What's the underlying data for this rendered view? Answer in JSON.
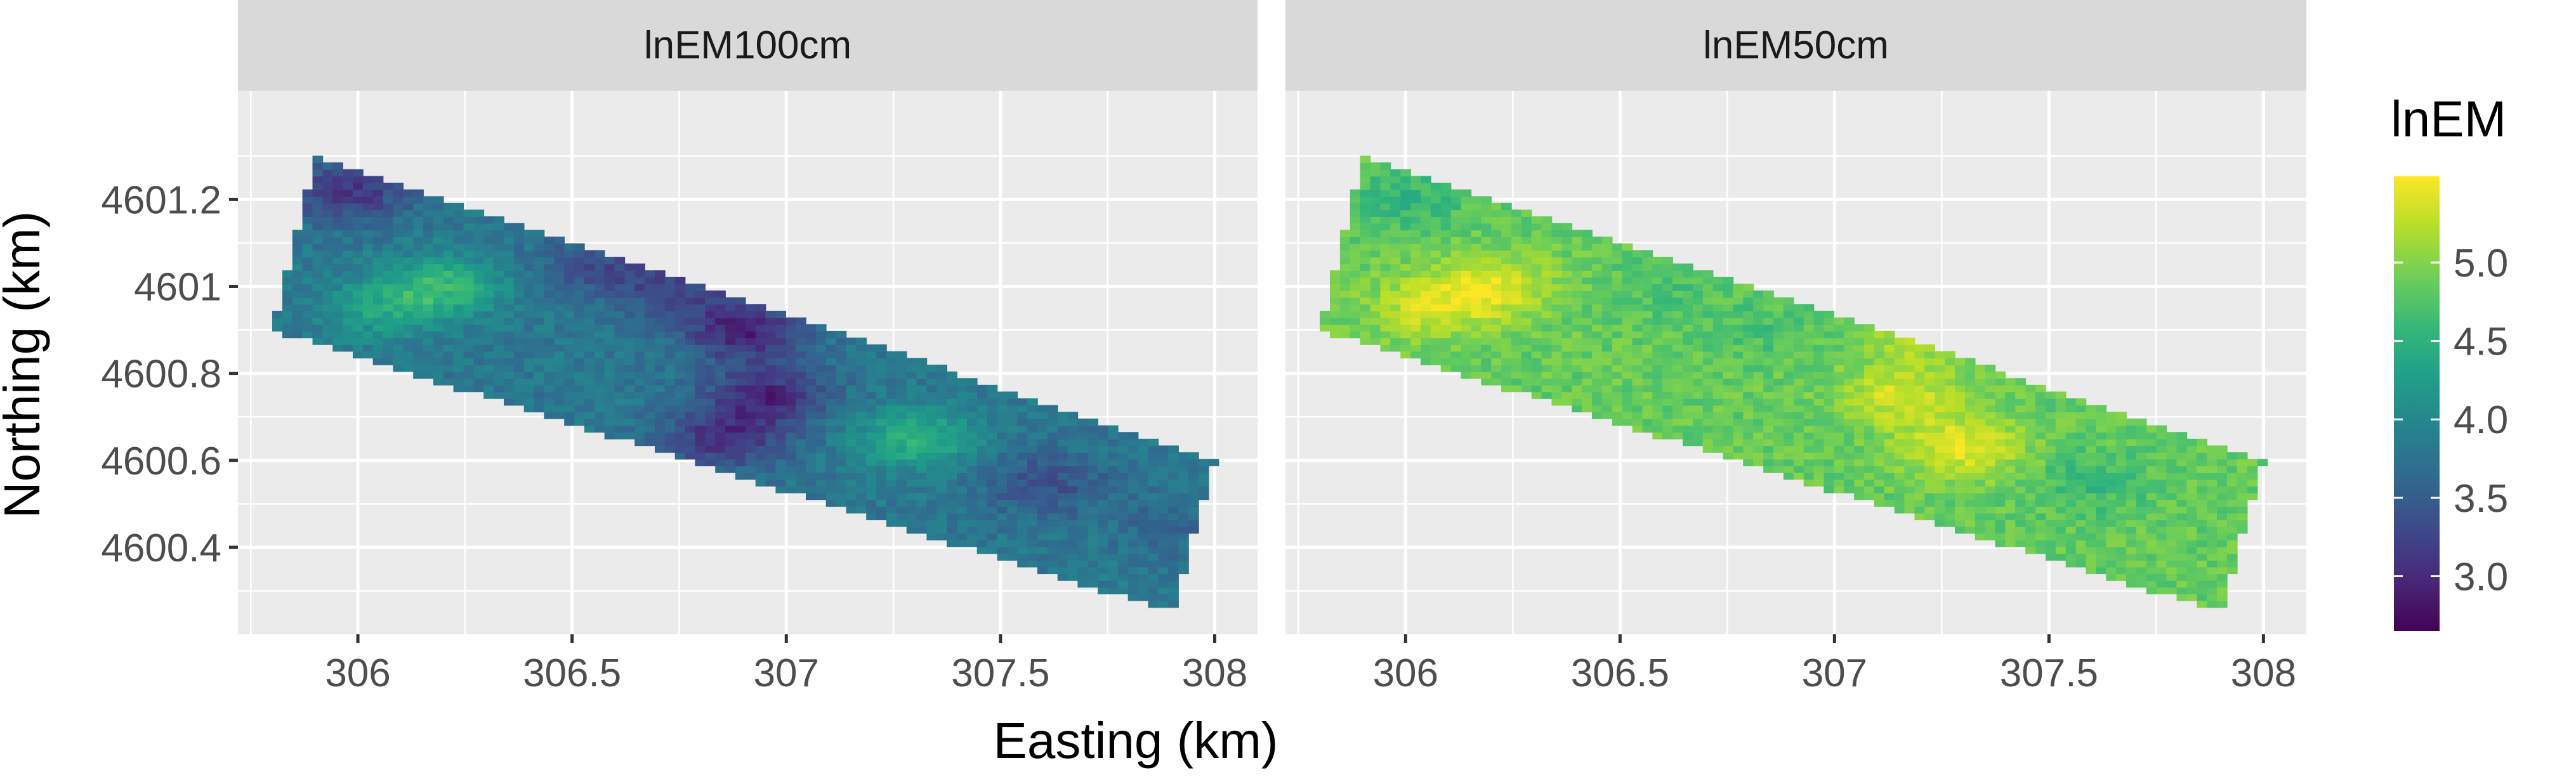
{
  "chart_data": {
    "type": "heatmap",
    "facets": [
      "lnEM100cm",
      "lnEM50cm"
    ],
    "xlabel": "Easting (km)",
    "ylabel": "Northing (km)",
    "xlim": [
      305.72,
      308.1
    ],
    "ylim": [
      4600.2,
      4601.45
    ],
    "x_ticks": [
      306,
      306.5,
      307,
      307.5,
      308
    ],
    "x_tick_labels": [
      "306",
      "306.5",
      "307",
      "307.5",
      "308"
    ],
    "y_ticks": [
      4600.4,
      4600.6,
      4600.8,
      4601,
      4601.2
    ],
    "y_tick_labels": [
      "4600.4",
      "4600.6",
      "4600.8",
      "4601",
      "4601.2"
    ],
    "grid": true,
    "legend": {
      "title": "lnEM",
      "placement": "right",
      "range": [
        2.65,
        5.55
      ],
      "ticks": [
        3.0,
        3.5,
        4.0,
        4.5,
        5.0
      ],
      "tick_labels": [
        "3.0",
        "3.5",
        "4.0",
        "4.5",
        "5.0"
      ],
      "colormap": "viridis",
      "colors": [
        "#440154",
        "#482878",
        "#3e4989",
        "#31688e",
        "#26828e",
        "#1f9e89",
        "#35b779",
        "#6ece58",
        "#b5de2b",
        "#fde725"
      ]
    },
    "field_extent": {
      "x_range": [
        305.8,
        308.0
      ],
      "corners": [
        [
          305.9,
          4601.3
        ],
        [
          308.0,
          4600.6
        ],
        [
          307.9,
          4600.25
        ],
        [
          305.8,
          4600.9
        ]
      ]
    },
    "series": [
      {
        "name": "lnEM100cm",
        "base": 3.8,
        "hotspots": [
          {
            "x": 305.98,
            "y": 4601.22,
            "v": 3.1
          },
          {
            "x": 306.2,
            "y": 4601.0,
            "v": 4.55
          },
          {
            "x": 306.05,
            "y": 4600.95,
            "v": 4.3
          },
          {
            "x": 306.55,
            "y": 4601.05,
            "v": 3.35
          },
          {
            "x": 306.75,
            "y": 4601.0,
            "v": 3.3
          },
          {
            "x": 306.9,
            "y": 4600.9,
            "v": 2.95
          },
          {
            "x": 306.95,
            "y": 4600.75,
            "v": 3.0
          },
          {
            "x": 306.85,
            "y": 4600.65,
            "v": 3.1
          },
          {
            "x": 307.3,
            "y": 4600.65,
            "v": 4.5
          },
          {
            "x": 307.6,
            "y": 4600.55,
            "v": 3.35
          },
          {
            "x": 307.9,
            "y": 4600.45,
            "v": 3.6
          }
        ]
      },
      {
        "name": "lnEM50cm",
        "base": 4.85,
        "hotspots": [
          {
            "x": 306.2,
            "y": 4601.0,
            "v": 5.45
          },
          {
            "x": 306.05,
            "y": 4600.95,
            "v": 5.3
          },
          {
            "x": 306.0,
            "y": 4601.2,
            "v": 4.55
          },
          {
            "x": 306.6,
            "y": 4601.0,
            "v": 4.7
          },
          {
            "x": 307.15,
            "y": 4600.75,
            "v": 5.35
          },
          {
            "x": 307.3,
            "y": 4600.63,
            "v": 5.45
          },
          {
            "x": 307.2,
            "y": 4600.9,
            "v": 5.25
          },
          {
            "x": 307.6,
            "y": 4600.55,
            "v": 4.6
          },
          {
            "x": 306.85,
            "y": 4600.9,
            "v": 4.7
          }
        ]
      }
    ]
  }
}
